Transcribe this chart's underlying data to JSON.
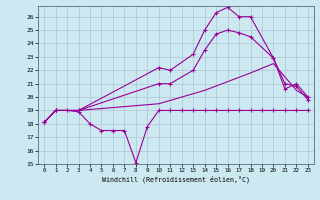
{
  "xlabel": "Windchill (Refroidissement éolien,°C)",
  "bg_color": "#cce8f0",
  "line_color": "#990099",
  "xlim": [
    -0.5,
    23.5
  ],
  "ylim": [
    15,
    26.8
  ],
  "yticks": [
    15,
    16,
    17,
    18,
    19,
    20,
    21,
    22,
    23,
    24,
    25,
    26
  ],
  "xticks": [
    0,
    1,
    2,
    3,
    4,
    5,
    6,
    7,
    8,
    9,
    10,
    11,
    12,
    13,
    14,
    15,
    16,
    17,
    18,
    19,
    20,
    21,
    22,
    23
  ],
  "line1_x": [
    0,
    1,
    2,
    3,
    4,
    5,
    6,
    7,
    8,
    9,
    10,
    11,
    12,
    13,
    14,
    15,
    16,
    17,
    18,
    19,
    20,
    21,
    22,
    23
  ],
  "line1_y": [
    18.1,
    19.0,
    19.0,
    18.9,
    18.0,
    17.5,
    17.5,
    17.5,
    15.1,
    17.8,
    19.0,
    19.0,
    19.0,
    19.0,
    19.0,
    19.0,
    19.0,
    19.0,
    19.0,
    19.0,
    19.0,
    19.0,
    19.0,
    19.0
  ],
  "line2_x": [
    0,
    1,
    3,
    10,
    11,
    13,
    14,
    15,
    16,
    17,
    18,
    20,
    21,
    22,
    23
  ],
  "line2_y": [
    18.1,
    19.0,
    19.0,
    22.2,
    22.0,
    23.2,
    25.0,
    26.3,
    26.7,
    26.0,
    26.0,
    22.9,
    20.6,
    21.0,
    20.0
  ],
  "line3_x": [
    0,
    1,
    3,
    10,
    11,
    13,
    14,
    15,
    16,
    17,
    18,
    20,
    21,
    22,
    23
  ],
  "line3_y": [
    18.1,
    19.0,
    19.0,
    21.0,
    21.0,
    22.0,
    23.5,
    24.7,
    25.0,
    24.8,
    24.5,
    22.9,
    21.0,
    20.8,
    19.8
  ],
  "line4_x": [
    0,
    1,
    3,
    10,
    14,
    18,
    20,
    22,
    23
  ],
  "line4_y": [
    18.1,
    19.0,
    19.0,
    19.5,
    20.5,
    21.8,
    22.5,
    20.5,
    20.0
  ]
}
